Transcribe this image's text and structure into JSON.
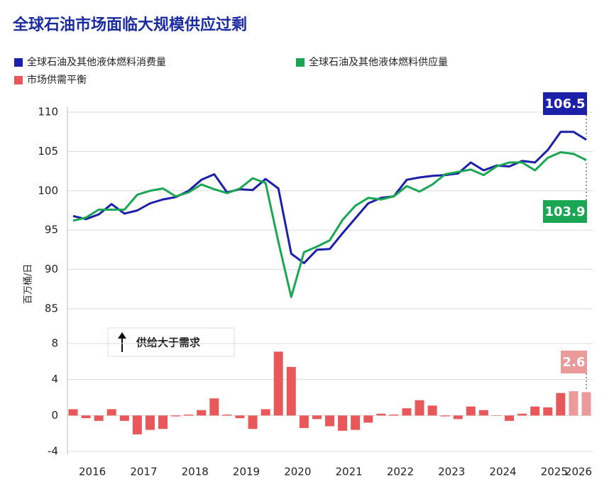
{
  "chart_data": [
    {
      "type": "line",
      "title": "全球石油市场面临大规模供应过剩",
      "ylabel": "百万桶/日",
      "ylim": [
        85,
        110
      ],
      "yticks": [
        85,
        90,
        95,
        100,
        105,
        110
      ],
      "grid": true,
      "series": [
        {
          "name": "全球石油及其他液体燃料消费量",
          "color": "#1c1fa8",
          "end_label": "106.5",
          "values": [
            96.8,
            96.4,
            97.0,
            98.3,
            97.1,
            97.5,
            98.4,
            98.9,
            99.2,
            100.0,
            101.4,
            102.1,
            99.8,
            100.2,
            100.1,
            101.5,
            100.3,
            92.0,
            90.8,
            92.5,
            92.6,
            94.6,
            96.5,
            98.4,
            99.1,
            99.3,
            101.4,
            101.7,
            101.9,
            102.0,
            102.2,
            103.6,
            102.6,
            103.2,
            103.1,
            103.8,
            103.6,
            105.2,
            107.5,
            107.5,
            106.5
          ]
        },
        {
          "name": "全球石油及其他液体燃料供应量",
          "color": "#1aa653",
          "end_label": "103.9",
          "values": [
            96.2,
            96.6,
            97.6,
            97.6,
            97.6,
            99.5,
            100.0,
            100.3,
            99.3,
            99.8,
            100.8,
            100.2,
            99.7,
            100.3,
            101.6,
            101.0,
            93.5,
            86.5,
            92.2,
            92.9,
            93.7,
            96.3,
            98.1,
            99.1,
            98.9,
            99.3,
            100.6,
            99.9,
            100.8,
            102.1,
            102.4,
            102.7,
            102.0,
            103.1,
            103.6,
            103.6,
            102.6,
            104.2,
            104.9,
            104.7,
            103.9
          ]
        }
      ]
    },
    {
      "type": "bar",
      "ylim": [
        -4,
        8
      ],
      "yticks": [
        -4,
        0,
        4,
        8
      ],
      "grid": true,
      "note": "供给大于需求",
      "categories": [
        null,
        "2016",
        null,
        null,
        null,
        "2017",
        null,
        null,
        null,
        "2018",
        null,
        null,
        null,
        "2019",
        null,
        null,
        null,
        "2020",
        null,
        null,
        null,
        "2021",
        null,
        null,
        null,
        "2022",
        null,
        null,
        null,
        "2023",
        null,
        null,
        null,
        "2024",
        null,
        null,
        null,
        "2025",
        null,
        null,
        "2026"
      ],
      "series": [
        {
          "name": "市场供需平衡",
          "color": "#e8585a",
          "end_label": "2.6",
          "values": [
            0.7,
            -0.3,
            -0.6,
            0.7,
            -0.6,
            -2.1,
            -1.6,
            -1.5,
            -0.1,
            0.1,
            0.6,
            1.9,
            0.1,
            -0.3,
            -1.5,
            0.7,
            7.1,
            5.4,
            -1.4,
            -0.4,
            -1.2,
            -1.7,
            -1.6,
            -0.8,
            0.2,
            0.1,
            0.8,
            1.7,
            1.1,
            -0.1,
            -0.4,
            1.0,
            0.6,
            0.0,
            -0.6,
            0.2,
            1.0,
            0.9,
            2.5,
            2.7,
            2.6
          ],
          "colors": [
            "#e8585a",
            "#e8585a",
            "#e8585a",
            "#e8585a",
            "#e8585a",
            "#e8585a",
            "#e8585a",
            "#e8585a",
            "#e8585a",
            "#e8585a",
            "#e8585a",
            "#e8585a",
            "#e8585a",
            "#e8585a",
            "#e8585a",
            "#e8585a",
            "#e8585a",
            "#e8585a",
            "#e8585a",
            "#e8585a",
            "#e8585a",
            "#e8585a",
            "#e8585a",
            "#e8585a",
            "#e8585a",
            "#e8585a",
            "#e8585a",
            "#e8585a",
            "#e8585a",
            "#e8585a",
            "#e8585a",
            "#e8585a",
            "#e8585a",
            "#e8585a",
            "#e8585a",
            "#e8585a",
            "#e8585a",
            "#e8585a",
            "#e8585a",
            "#eb9a9a",
            "#eb9a9a"
          ]
        }
      ]
    }
  ]
}
